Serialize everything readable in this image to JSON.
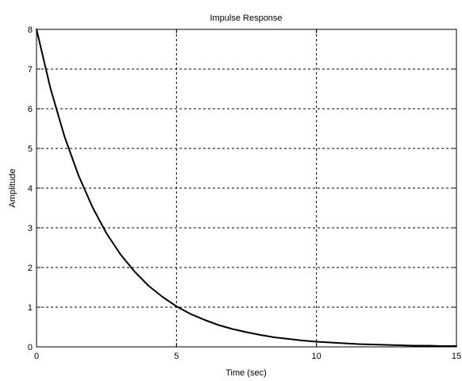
{
  "chart_data": {
    "type": "line",
    "title": "Impulse Response",
    "xlabel": "Time (sec)",
    "ylabel": "Amplitude",
    "xlim": [
      0,
      15
    ],
    "ylim": [
      0,
      8
    ],
    "xticks": [
      "0",
      "5",
      "10",
      "15"
    ],
    "yticks": [
      "0",
      "1",
      "2",
      "3",
      "4",
      "5",
      "6",
      "7",
      "8"
    ],
    "grid": true,
    "grid_style": "dashed",
    "legend": "none",
    "colors": {
      "line": "#000000",
      "grid": "#000000",
      "axes": "#000000",
      "background": "#ffffff"
    },
    "series": [
      {
        "x": [
          0,
          0.5,
          1,
          1.5,
          2,
          2.5,
          3,
          3.5,
          4,
          4.5,
          5,
          5.5,
          6,
          6.5,
          7,
          7.5,
          8,
          8.5,
          9,
          9.5,
          10,
          10.5,
          11,
          11.5,
          12,
          12.5,
          13,
          13.5,
          14,
          14.5,
          15
        ],
        "y": [
          8.0,
          6.51,
          5.3,
          4.32,
          3.52,
          2.86,
          2.33,
          1.9,
          1.54,
          1.26,
          1.02,
          0.83,
          0.68,
          0.55,
          0.45,
          0.37,
          0.3,
          0.24,
          0.2,
          0.16,
          0.13,
          0.11,
          0.09,
          0.07,
          0.06,
          0.05,
          0.04,
          0.03,
          0.03,
          0.02,
          0.02
        ]
      }
    ]
  }
}
